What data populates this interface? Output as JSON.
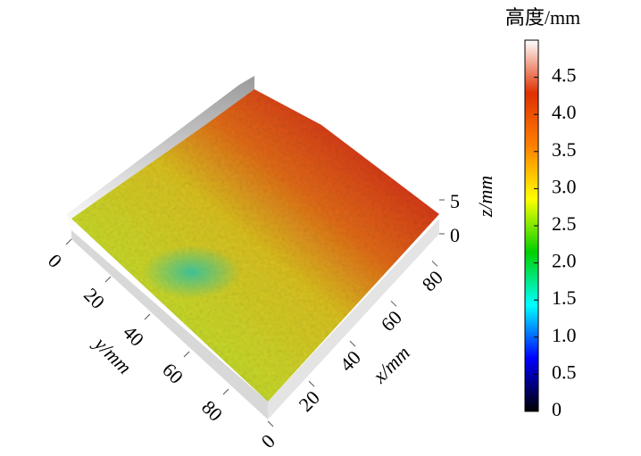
{
  "chart_data": {
    "type": "surface",
    "xlabel": "x/mm",
    "ylabel": "y/mm",
    "zlabel": "z/mm",
    "xlim": [
      0,
      90
    ],
    "xticks": [
      0,
      20,
      40,
      60,
      80
    ],
    "ylim": [
      0,
      90
    ],
    "yticks": [
      0,
      20,
      40,
      60,
      80
    ],
    "zlim": [
      0,
      5
    ],
    "zticks": [
      0,
      5
    ],
    "colorbar": {
      "title": "高度/mm",
      "lim": [
        0,
        5
      ],
      "ticks": [
        0,
        0.5,
        {
          "value": 1,
          "label": "1.0"
        },
        1.5,
        {
          "value": 2,
          "label": "2.0"
        },
        2.5,
        {
          "value": 3,
          "label": "3.0"
        },
        3.5,
        {
          "value": 4,
          "label": "4.0"
        },
        4.5
      ],
      "colors": [
        "#000000",
        "#0000ff",
        "#00ffff",
        "#00d000",
        "#ffff00",
        "#ff8000",
        "#e03000",
        "#ffffff"
      ]
    }
  }
}
